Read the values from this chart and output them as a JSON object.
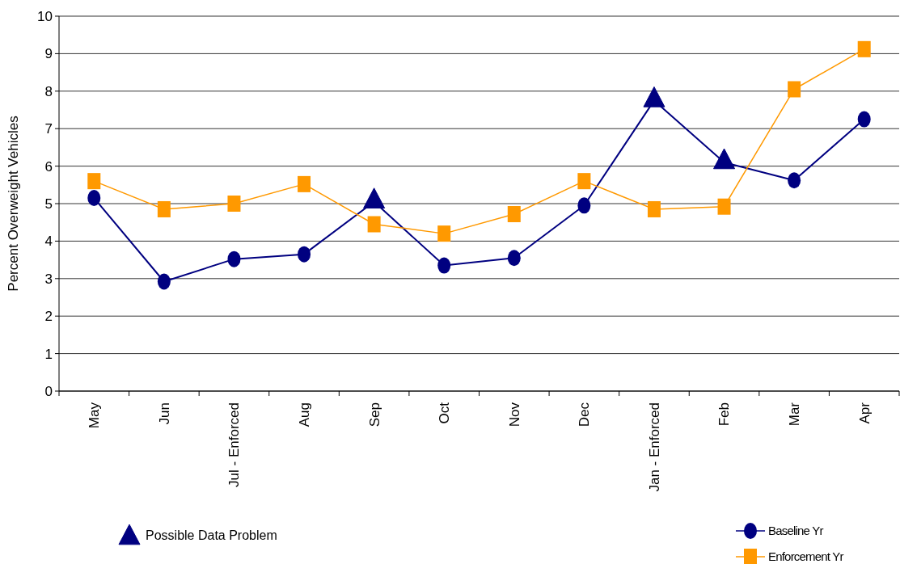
{
  "chart_data": {
    "type": "line",
    "ylabel": "Percent Overweight Vehicles",
    "categories": [
      "May",
      "Jun",
      "Jul - Enforced",
      "Aug",
      "Sep",
      "Oct",
      "Nov",
      "Dec",
      "Jan - Enforced",
      "Feb",
      "Mar",
      "Apr"
    ],
    "series": [
      {
        "name": "Baseline Yr",
        "color": "#000080",
        "marker": "circle",
        "values": [
          5.15,
          2.92,
          3.52,
          3.65,
          5.05,
          3.35,
          3.55,
          4.95,
          7.75,
          6.1,
          5.62,
          7.25
        ]
      },
      {
        "name": "Enforcement Yr",
        "color": "#ff9900",
        "marker": "square",
        "values": [
          5.6,
          4.85,
          5.0,
          5.52,
          4.45,
          4.2,
          4.72,
          5.6,
          4.85,
          4.92,
          8.05,
          9.12
        ]
      },
      {
        "name": "Possible Data Problem",
        "type": "scatter",
        "color": "#000080",
        "marker": "triangle",
        "x": [
          "Sep",
          "Jan - Enforced",
          "Feb"
        ],
        "values": [
          5.05,
          7.75,
          6.1
        ]
      }
    ],
    "ylim": [
      0,
      10
    ],
    "yticks": [
      0,
      1,
      2,
      3,
      4,
      5,
      6,
      7,
      8,
      9,
      10
    ],
    "grid": "y",
    "legend": "bottom"
  }
}
